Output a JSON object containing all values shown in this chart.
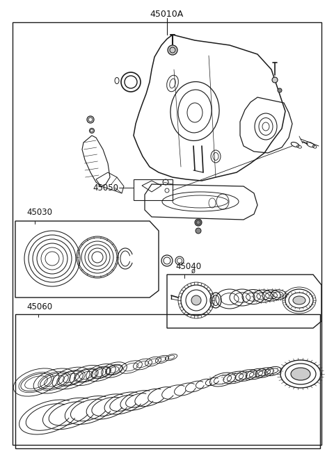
{
  "title": "45010A",
  "bg_color": "#ffffff",
  "line_color": "#1a1a1a",
  "text_color": "#111111",
  "gray": "#888888",
  "light_gray": "#cccccc",
  "fig_width": 4.8,
  "fig_height": 6.56,
  "dpi": 100
}
